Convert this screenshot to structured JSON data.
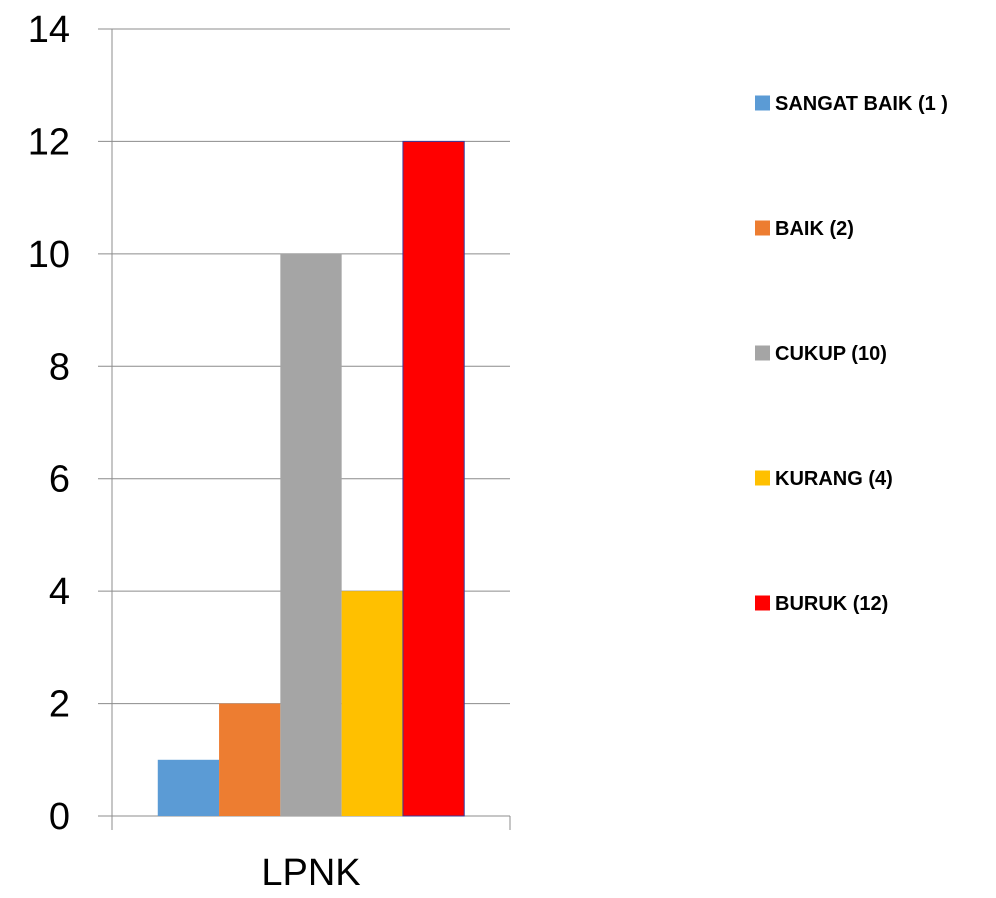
{
  "chart_data": {
    "type": "bar",
    "title": "",
    "xlabel": "",
    "ylabel": "",
    "categories": [
      "LPNK"
    ],
    "ylim": [
      0,
      14
    ],
    "yticks": [
      0,
      2,
      4,
      6,
      8,
      10,
      12,
      14
    ],
    "grid": true,
    "legend_position": "right",
    "series": [
      {
        "name": "SANGAT BAIK (1 )",
        "values": [
          1
        ],
        "color": "#5B9BD5"
      },
      {
        "name": "BAIK (2)",
        "values": [
          2
        ],
        "color": "#ED7D31"
      },
      {
        "name": "CUKUP (10)",
        "values": [
          10
        ],
        "color": "#A5A5A5"
      },
      {
        "name": "KURANG (4)",
        "values": [
          4
        ],
        "color": "#FFC000"
      },
      {
        "name": "BURUK (12)",
        "values": [
          12
        ],
        "color": "#FF0000"
      }
    ]
  }
}
